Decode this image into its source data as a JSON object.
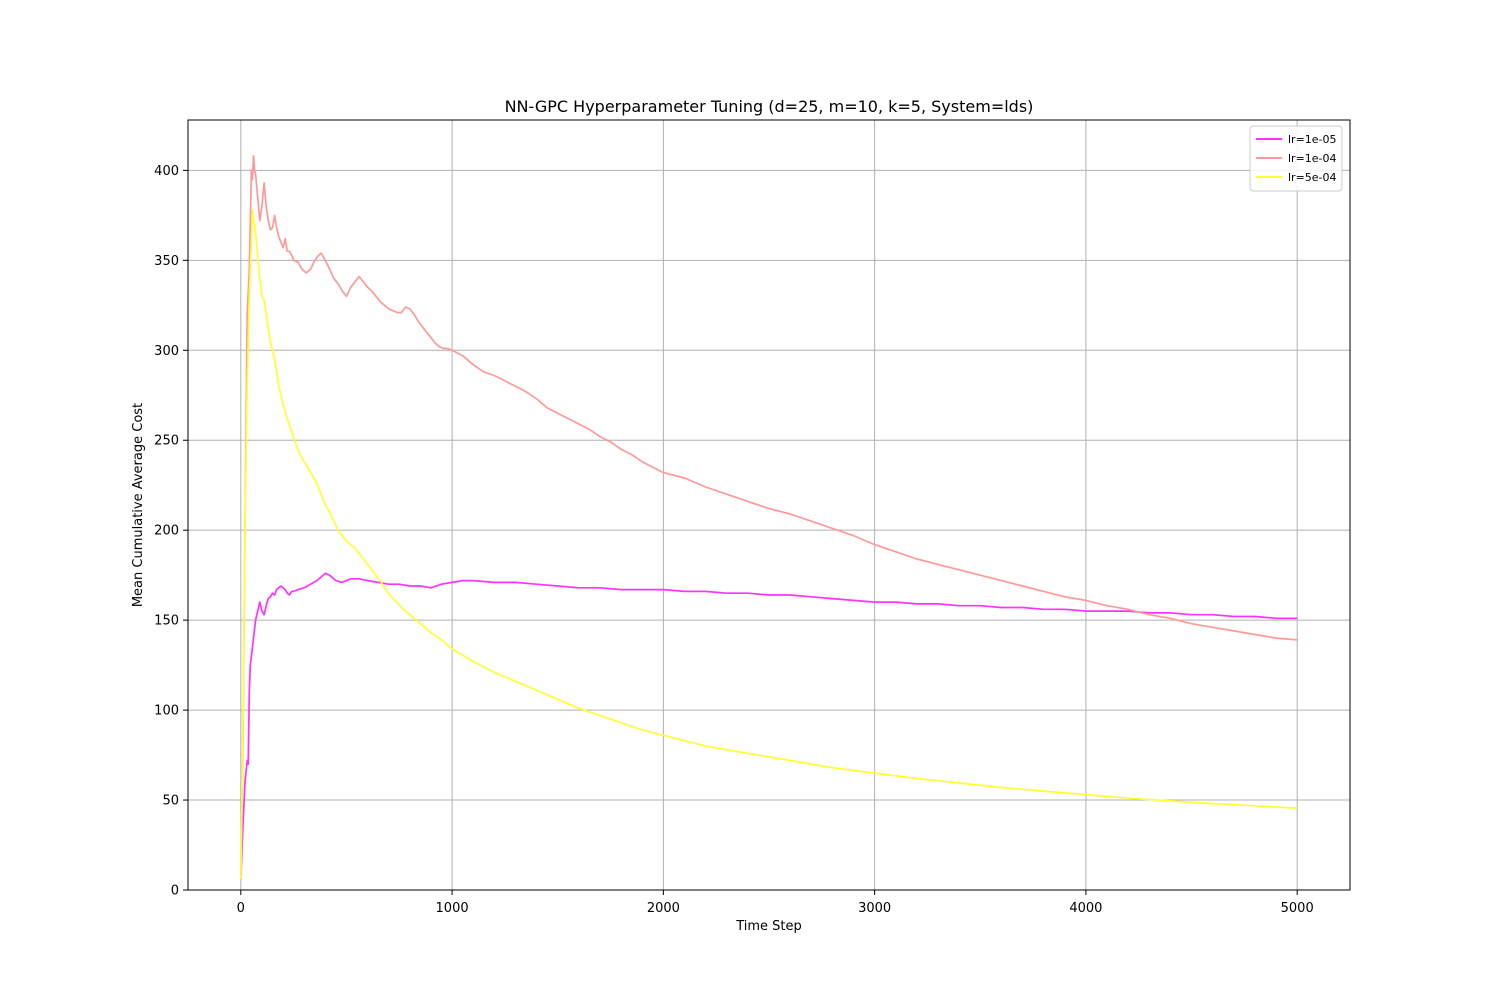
{
  "chart_data": {
    "type": "line",
    "title": "NN-GPC Hyperparameter Tuning (d=25, m=10, k=5, System=lds)",
    "xlabel": "Time Step",
    "ylabel": "Mean Cumulative Average Cost",
    "xlim": [
      -250,
      5250
    ],
    "ylim": [
      0,
      428
    ],
    "xticks": [
      0,
      1000,
      2000,
      3000,
      4000,
      5000
    ],
    "yticks": [
      0,
      50,
      100,
      150,
      200,
      250,
      300,
      350,
      400
    ],
    "grid": true,
    "legend_position": "upper right",
    "series": [
      {
        "name": "lr=1e-05",
        "color": "#ff33ff",
        "points": [
          [
            0,
            6
          ],
          [
            10,
            35
          ],
          [
            20,
            60
          ],
          [
            30,
            72
          ],
          [
            35,
            70
          ],
          [
            40,
            110
          ],
          [
            45,
            125
          ],
          [
            50,
            130
          ],
          [
            60,
            140
          ],
          [
            70,
            150
          ],
          [
            80,
            155
          ],
          [
            90,
            160
          ],
          [
            100,
            155
          ],
          [
            110,
            153
          ],
          [
            120,
            158
          ],
          [
            130,
            162
          ],
          [
            140,
            163
          ],
          [
            150,
            165
          ],
          [
            160,
            164
          ],
          [
            170,
            167
          ],
          [
            180,
            168
          ],
          [
            190,
            169
          ],
          [
            200,
            168
          ],
          [
            210,
            167
          ],
          [
            220,
            165
          ],
          [
            230,
            164
          ],
          [
            240,
            166
          ],
          [
            250,
            166
          ],
          [
            270,
            167
          ],
          [
            300,
            168
          ],
          [
            330,
            170
          ],
          [
            360,
            172
          ],
          [
            380,
            174
          ],
          [
            400,
            176
          ],
          [
            420,
            175
          ],
          [
            450,
            172
          ],
          [
            480,
            171
          ],
          [
            520,
            173
          ],
          [
            560,
            173
          ],
          [
            600,
            172
          ],
          [
            650,
            171
          ],
          [
            700,
            170
          ],
          [
            750,
            170
          ],
          [
            800,
            169
          ],
          [
            850,
            169
          ],
          [
            900,
            168
          ],
          [
            950,
            170
          ],
          [
            1000,
            171
          ],
          [
            1050,
            172
          ],
          [
            1100,
            172
          ],
          [
            1200,
            171
          ],
          [
            1300,
            171
          ],
          [
            1400,
            170
          ],
          [
            1500,
            169
          ],
          [
            1600,
            168
          ],
          [
            1700,
            168
          ],
          [
            1800,
            167
          ],
          [
            1900,
            167
          ],
          [
            2000,
            167
          ],
          [
            2100,
            166
          ],
          [
            2200,
            166
          ],
          [
            2300,
            165
          ],
          [
            2400,
            165
          ],
          [
            2500,
            164
          ],
          [
            2600,
            164
          ],
          [
            2700,
            163
          ],
          [
            2800,
            162
          ],
          [
            2900,
            161
          ],
          [
            3000,
            160
          ],
          [
            3100,
            160
          ],
          [
            3200,
            159
          ],
          [
            3300,
            159
          ],
          [
            3400,
            158
          ],
          [
            3500,
            158
          ],
          [
            3600,
            157
          ],
          [
            3700,
            157
          ],
          [
            3800,
            156
          ],
          [
            3900,
            156
          ],
          [
            4000,
            155
          ],
          [
            4100,
            155
          ],
          [
            4200,
            155
          ],
          [
            4300,
            154
          ],
          [
            4400,
            154
          ],
          [
            4500,
            153
          ],
          [
            4600,
            153
          ],
          [
            4700,
            152
          ],
          [
            4800,
            152
          ],
          [
            4900,
            151
          ],
          [
            5000,
            151
          ]
        ]
      },
      {
        "name": "lr=1e-04",
        "color": "#ff9999",
        "points": [
          [
            0,
            6
          ],
          [
            10,
            80
          ],
          [
            20,
            200
          ],
          [
            30,
            320
          ],
          [
            40,
            345
          ],
          [
            50,
            400
          ],
          [
            55,
            395
          ],
          [
            60,
            408
          ],
          [
            65,
            400
          ],
          [
            70,
            398
          ],
          [
            80,
            385
          ],
          [
            90,
            372
          ],
          [
            100,
            380
          ],
          [
            110,
            393
          ],
          [
            120,
            380
          ],
          [
            130,
            372
          ],
          [
            140,
            367
          ],
          [
            150,
            368
          ],
          [
            160,
            375
          ],
          [
            170,
            368
          ],
          [
            180,
            363
          ],
          [
            190,
            360
          ],
          [
            200,
            357
          ],
          [
            210,
            362
          ],
          [
            220,
            355
          ],
          [
            230,
            355
          ],
          [
            240,
            353
          ],
          [
            250,
            350
          ],
          [
            270,
            349
          ],
          [
            290,
            345
          ],
          [
            310,
            343
          ],
          [
            330,
            345
          ],
          [
            350,
            350
          ],
          [
            370,
            353
          ],
          [
            380,
            354
          ],
          [
            400,
            350
          ],
          [
            420,
            345
          ],
          [
            440,
            340
          ],
          [
            460,
            337
          ],
          [
            480,
            333
          ],
          [
            500,
            330
          ],
          [
            520,
            335
          ],
          [
            540,
            338
          ],
          [
            560,
            341
          ],
          [
            580,
            338
          ],
          [
            600,
            335
          ],
          [
            620,
            333
          ],
          [
            640,
            330
          ],
          [
            660,
            327
          ],
          [
            680,
            325
          ],
          [
            700,
            323
          ],
          [
            720,
            322
          ],
          [
            740,
            321
          ],
          [
            760,
            321
          ],
          [
            780,
            324
          ],
          [
            800,
            323
          ],
          [
            820,
            320
          ],
          [
            840,
            316
          ],
          [
            860,
            313
          ],
          [
            880,
            310
          ],
          [
            900,
            307
          ],
          [
            920,
            304
          ],
          [
            940,
            302
          ],
          [
            960,
            301
          ],
          [
            980,
            301
          ],
          [
            1000,
            300
          ],
          [
            1050,
            297
          ],
          [
            1100,
            292
          ],
          [
            1150,
            288
          ],
          [
            1200,
            286
          ],
          [
            1250,
            283
          ],
          [
            1300,
            280
          ],
          [
            1350,
            277
          ],
          [
            1400,
            273
          ],
          [
            1450,
            268
          ],
          [
            1500,
            265
          ],
          [
            1550,
            262
          ],
          [
            1600,
            259
          ],
          [
            1650,
            256
          ],
          [
            1700,
            252
          ],
          [
            1750,
            249
          ],
          [
            1800,
            245
          ],
          [
            1850,
            242
          ],
          [
            1900,
            238
          ],
          [
            1950,
            235
          ],
          [
            2000,
            232
          ],
          [
            2100,
            229
          ],
          [
            2200,
            224
          ],
          [
            2300,
            220
          ],
          [
            2400,
            216
          ],
          [
            2500,
            212
          ],
          [
            2600,
            209
          ],
          [
            2700,
            205
          ],
          [
            2800,
            201
          ],
          [
            2900,
            197
          ],
          [
            3000,
            192
          ],
          [
            3100,
            188
          ],
          [
            3200,
            184
          ],
          [
            3300,
            181
          ],
          [
            3400,
            178
          ],
          [
            3500,
            175
          ],
          [
            3600,
            172
          ],
          [
            3700,
            169
          ],
          [
            3800,
            166
          ],
          [
            3900,
            163
          ],
          [
            4000,
            161
          ],
          [
            4100,
            158
          ],
          [
            4200,
            156
          ],
          [
            4300,
            153
          ],
          [
            4400,
            151
          ],
          [
            4500,
            148
          ],
          [
            4600,
            146
          ],
          [
            4700,
            144
          ],
          [
            4800,
            142
          ],
          [
            4900,
            140
          ],
          [
            5000,
            139
          ]
        ]
      },
      {
        "name": "lr=5e-04",
        "color": "#ffff33",
        "points": [
          [
            0,
            6
          ],
          [
            10,
            90
          ],
          [
            20,
            200
          ],
          [
            30,
            280
          ],
          [
            40,
            330
          ],
          [
            50,
            360
          ],
          [
            55,
            378
          ],
          [
            60,
            372
          ],
          [
            65,
            370
          ],
          [
            70,
            365
          ],
          [
            80,
            352
          ],
          [
            90,
            340
          ],
          [
            100,
            330
          ],
          [
            110,
            328
          ],
          [
            120,
            320
          ],
          [
            130,
            312
          ],
          [
            140,
            305
          ],
          [
            150,
            300
          ],
          [
            160,
            295
          ],
          [
            170,
            288
          ],
          [
            180,
            280
          ],
          [
            190,
            275
          ],
          [
            200,
            270
          ],
          [
            220,
            262
          ],
          [
            240,
            255
          ],
          [
            260,
            248
          ],
          [
            280,
            242
          ],
          [
            300,
            238
          ],
          [
            320,
            234
          ],
          [
            340,
            230
          ],
          [
            360,
            226
          ],
          [
            380,
            220
          ],
          [
            400,
            214
          ],
          [
            420,
            210
          ],
          [
            440,
            205
          ],
          [
            460,
            200
          ],
          [
            480,
            197
          ],
          [
            500,
            194
          ],
          [
            520,
            192
          ],
          [
            540,
            190
          ],
          [
            560,
            187
          ],
          [
            580,
            184
          ],
          [
            600,
            181
          ],
          [
            620,
            178
          ],
          [
            640,
            175
          ],
          [
            660,
            172
          ],
          [
            680,
            168
          ],
          [
            700,
            165
          ],
          [
            720,
            162
          ],
          [
            740,
            160
          ],
          [
            760,
            157
          ],
          [
            780,
            155
          ],
          [
            800,
            153
          ],
          [
            850,
            148
          ],
          [
            900,
            143
          ],
          [
            950,
            139
          ],
          [
            1000,
            134
          ],
          [
            1100,
            127
          ],
          [
            1200,
            121
          ],
          [
            1300,
            116
          ],
          [
            1400,
            111
          ],
          [
            1500,
            106
          ],
          [
            1600,
            101
          ],
          [
            1700,
            97
          ],
          [
            1800,
            93
          ],
          [
            1900,
            89
          ],
          [
            2000,
            86
          ],
          [
            2100,
            83
          ],
          [
            2200,
            80
          ],
          [
            2300,
            78
          ],
          [
            2400,
            76
          ],
          [
            2500,
            74
          ],
          [
            2600,
            72
          ],
          [
            2700,
            70
          ],
          [
            2800,
            68
          ],
          [
            2900,
            66.5
          ],
          [
            3000,
            65
          ],
          [
            3200,
            62
          ],
          [
            3400,
            59.5
          ],
          [
            3600,
            57
          ],
          [
            3800,
            55
          ],
          [
            4000,
            53
          ],
          [
            4200,
            51
          ],
          [
            4400,
            49.5
          ],
          [
            4600,
            48
          ],
          [
            4800,
            46.8
          ],
          [
            5000,
            45.5
          ]
        ]
      }
    ]
  }
}
